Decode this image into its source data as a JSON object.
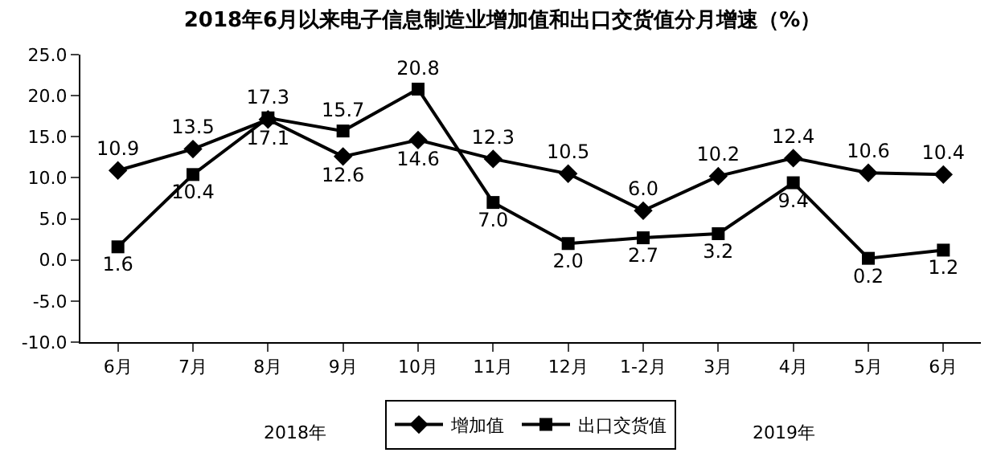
{
  "chart_data": {
    "type": "line",
    "title": "2018年6月以来电子信息制造业增加值和出口交货值分月增速（%）",
    "categories": [
      "6月",
      "7月",
      "8月",
      "9月",
      "10月",
      "11月",
      "12月",
      "1-2月",
      "3月",
      "4月",
      "5月",
      "6月"
    ],
    "series": [
      {
        "name": "增加值",
        "color": "#000000",
        "marker": "diamond",
        "values": [
          10.9,
          13.5,
          17.1,
          12.6,
          14.6,
          12.3,
          10.5,
          6.0,
          10.2,
          12.4,
          10.6,
          10.4
        ],
        "value_labels": [
          "10.9",
          "13.5",
          "17.1",
          "12.6",
          "14.6",
          "12.3",
          "10.5",
          "6.0",
          "10.2",
          "12.4",
          "10.6",
          "10.4"
        ]
      },
      {
        "name": "出口交货值",
        "color": "#000000",
        "marker": "square",
        "values": [
          1.6,
          10.4,
          17.3,
          15.7,
          20.8,
          7.0,
          2.0,
          2.7,
          3.2,
          9.4,
          0.2,
          1.2
        ],
        "value_labels": [
          "1.6",
          "10.4",
          "17.3",
          "15.7",
          "20.8",
          "7.0",
          "2.0",
          "2.7",
          "3.2",
          "9.4",
          "0.2",
          "1.2"
        ]
      }
    ],
    "ylim": [
      -10,
      25
    ],
    "yticks": [
      {
        "value": -10,
        "label": "-10.0"
      },
      {
        "value": -5,
        "label": "-5.0"
      },
      {
        "value": 0,
        "label": "0.0"
      },
      {
        "value": 5,
        "label": "5.0"
      },
      {
        "value": 10,
        "label": "10.0"
      },
      {
        "value": 15,
        "label": "15.0"
      },
      {
        "value": 20,
        "label": "20.0"
      },
      {
        "value": 25,
        "label": "25.0"
      }
    ],
    "legend": "bottom",
    "line_style": "solid",
    "annotations": [
      "2018年",
      "2019年"
    ]
  }
}
